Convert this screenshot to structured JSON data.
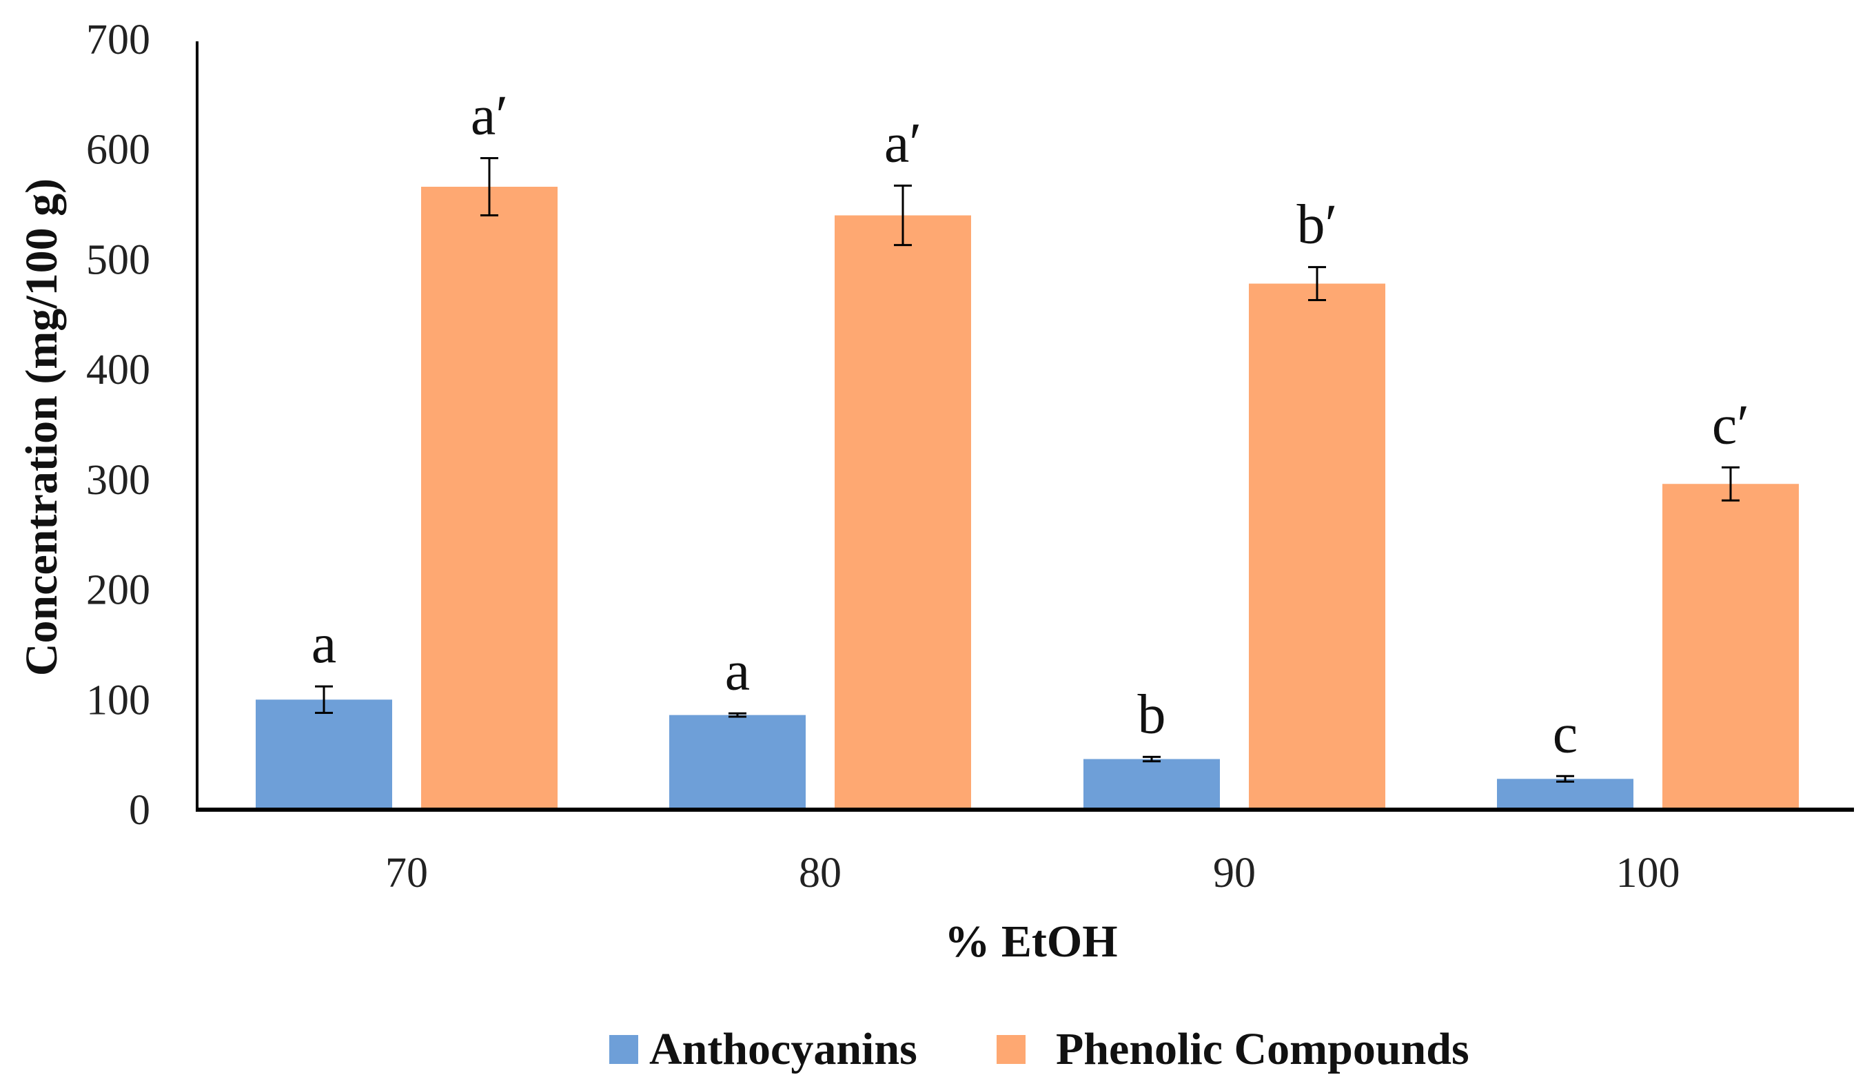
{
  "chart_data": {
    "type": "bar",
    "title": "",
    "xlabel": "% EtOH",
    "ylabel": "Concentration (mg/100 g)",
    "ylim": [
      0,
      700
    ],
    "yticks": [
      0,
      100,
      200,
      300,
      400,
      500,
      600,
      700
    ],
    "ytick_labels": [
      "0",
      "100",
      "200",
      "300",
      "400",
      "500",
      "600",
      "700"
    ],
    "categories": [
      "70",
      "80",
      "90",
      "100"
    ],
    "legend_position": "bottom-center",
    "grid": false,
    "series": [
      {
        "name": "Anthocyanins",
        "color": "#6e9fd8",
        "values": [
          100,
          86,
          46,
          28
        ],
        "errors": [
          12,
          1.5,
          2,
          2.5
        ],
        "significance": [
          "a",
          "a",
          "b",
          "c"
        ]
      },
      {
        "name": "Phenolic Compounds",
        "color": "#fea872",
        "values": [
          566,
          540,
          478,
          296
        ],
        "errors": [
          26,
          27,
          15,
          15
        ],
        "significance": [
          "a′",
          "a′",
          "b′",
          "c′"
        ]
      }
    ]
  }
}
